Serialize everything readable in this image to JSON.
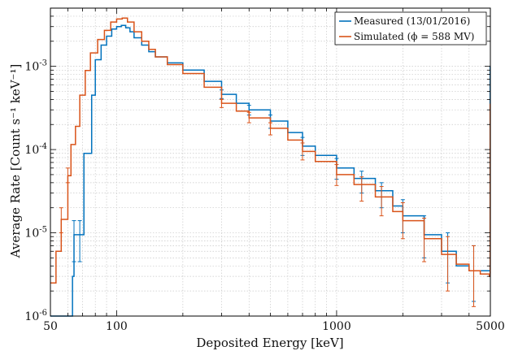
{
  "chart_data": {
    "type": "line",
    "step": true,
    "xscale": "log",
    "yscale": "log",
    "xlim": [
      50,
      5000
    ],
    "ylim": [
      1e-06,
      0.005
    ],
    "xlabel": "Deposited Energy [keV]",
    "ylabel": "Average Rate [Count s⁻¹ keV⁻¹]",
    "grid": true,
    "legend_position": "top-right",
    "x_ticks": [
      {
        "value": 50,
        "label": "50"
      },
      {
        "value": 100,
        "label": "100"
      },
      {
        "value": 1000,
        "label": "1000"
      },
      {
        "value": 5000,
        "label": "5000"
      }
    ],
    "y_ticks": [
      {
        "value": 1e-06,
        "base": "10",
        "exp": "-6"
      },
      {
        "value": 1e-05,
        "base": "10",
        "exp": "-5"
      },
      {
        "value": 0.0001,
        "base": "10",
        "exp": "-4"
      },
      {
        "value": 0.001,
        "base": "10",
        "exp": "-3"
      }
    ],
    "series": [
      {
        "name": "Measured (13/01/2016)",
        "color": "#0072BD",
        "points": [
          [
            50,
            1e-06
          ],
          [
            62,
            1e-06
          ],
          [
            63,
            3e-06
          ],
          [
            64,
            9.5e-06
          ],
          [
            70,
            9.5e-06
          ],
          [
            71,
            9e-05
          ],
          [
            77,
            0.00045
          ],
          [
            80,
            0.0012
          ],
          [
            85,
            0.0018
          ],
          [
            90,
            0.0023
          ],
          [
            95,
            0.0028
          ],
          [
            100,
            0.003
          ],
          [
            105,
            0.0031
          ],
          [
            110,
            0.0029
          ],
          [
            115,
            0.0026
          ],
          [
            120,
            0.0022
          ],
          [
            130,
            0.0018
          ],
          [
            140,
            0.0015
          ],
          [
            150,
            0.0013
          ],
          [
            170,
            0.0011
          ],
          [
            200,
            0.0009
          ],
          [
            250,
            0.00066
          ],
          [
            300,
            0.00046
          ],
          [
            350,
            0.00036
          ],
          [
            400,
            0.0003
          ],
          [
            500,
            0.00022
          ],
          [
            600,
            0.00016
          ],
          [
            700,
            0.00011
          ],
          [
            800,
            8.5e-05
          ],
          [
            1000,
            6e-05
          ],
          [
            1200,
            4.5e-05
          ],
          [
            1500,
            3.2e-05
          ],
          [
            1800,
            2.1e-05
          ],
          [
            2000,
            1.6e-05
          ],
          [
            2500,
            9.5e-06
          ],
          [
            3000,
            6e-06
          ],
          [
            3500,
            4e-06
          ],
          [
            4000,
            3.5e-06
          ],
          [
            4500,
            3.5e-06
          ],
          [
            4950,
            3.5e-06
          ],
          [
            4990,
            0.001
          ]
        ],
        "errorbars": [
          [
            64,
            9.5e-06,
            1.4e-05,
            4.5e-06
          ],
          [
            68,
            9.5e-06,
            1.4e-05,
            4.5e-06
          ],
          [
            300,
            0.00046,
            0.00052,
            0.00041
          ],
          [
            400,
            0.0003,
            0.00034,
            0.00026
          ],
          [
            500,
            0.00022,
            0.00026,
            0.00018
          ],
          [
            700,
            0.00011,
            0.00014,
            8.5e-05
          ],
          [
            1000,
            6e-05,
            7.8e-05,
            4.4e-05
          ],
          [
            1300,
            4e-05,
            5.5e-05,
            3e-05
          ],
          [
            1600,
            2.8e-05,
            4e-05,
            2e-05
          ],
          [
            2000,
            1.6e-05,
            2.5e-05,
            1e-05
          ],
          [
            2500,
            9.5e-06,
            1.6e-05,
            5e-06
          ],
          [
            3200,
            5.5e-06,
            1e-05,
            2.5e-06
          ],
          [
            4200,
            3.5e-06,
            7e-06,
            1.5e-06
          ]
        ]
      },
      {
        "name": "Simulated (ϕ = 588 MV)",
        "color": "#D95319",
        "points": [
          [
            50,
            2.5e-06
          ],
          [
            52,
            2.5e-06
          ],
          [
            53,
            6e-06
          ],
          [
            56,
            1.45e-05
          ],
          [
            60,
            4.85e-05
          ],
          [
            62,
            0.000115
          ],
          [
            65,
            0.00019
          ],
          [
            68,
            0.00045
          ],
          [
            72,
            0.00089
          ],
          [
            76,
            0.00145
          ],
          [
            82,
            0.0021
          ],
          [
            88,
            0.0027
          ],
          [
            94,
            0.0034
          ],
          [
            100,
            0.0037
          ],
          [
            106,
            0.0038
          ],
          [
            112,
            0.0034
          ],
          [
            120,
            0.0026
          ],
          [
            130,
            0.002
          ],
          [
            140,
            0.0016
          ],
          [
            150,
            0.0013
          ],
          [
            170,
            0.00105
          ],
          [
            200,
            0.00082
          ],
          [
            250,
            0.00056
          ],
          [
            300,
            0.00036
          ],
          [
            350,
            0.00029
          ],
          [
            400,
            0.00024
          ],
          [
            500,
            0.00018
          ],
          [
            600,
            0.00013
          ],
          [
            700,
            9.5e-05
          ],
          [
            800,
            7.2e-05
          ],
          [
            1000,
            5e-05
          ],
          [
            1200,
            3.8e-05
          ],
          [
            1500,
            2.7e-05
          ],
          [
            1800,
            1.8e-05
          ],
          [
            2000,
            1.4e-05
          ],
          [
            2500,
            8.5e-06
          ],
          [
            3000,
            5.5e-06
          ],
          [
            3500,
            4.2e-06
          ],
          [
            4000,
            3.5e-06
          ],
          [
            4500,
            3.2e-06
          ],
          [
            4950,
            3e-06
          ],
          [
            4990,
            0.00035
          ]
        ],
        "errorbars": [
          [
            56,
            1.45e-05,
            2e-05,
            1e-05
          ],
          [
            60,
            4.85e-05,
            6e-05,
            4e-05
          ],
          [
            300,
            0.00036,
            0.0004,
            0.00032
          ],
          [
            400,
            0.00024,
            0.00028,
            0.00021
          ],
          [
            500,
            0.00018,
            0.00021,
            0.00015
          ],
          [
            700,
            9.5e-05,
            0.00012,
            7.5e-05
          ],
          [
            1000,
            5e-05,
            6.6e-05,
            3.7e-05
          ],
          [
            1300,
            3.4e-05,
            4.7e-05,
            2.4e-05
          ],
          [
            1600,
            2.4e-05,
            3.6e-05,
            1.6e-05
          ],
          [
            2000,
            1.4e-05,
            2.3e-05,
            8.5e-06
          ],
          [
            2500,
            8.5e-06,
            1.5e-05,
            4.5e-06
          ],
          [
            3200,
            5e-06,
            9e-06,
            2e-06
          ],
          [
            4200,
            3.3e-06,
            7e-06,
            1.3e-06
          ]
        ]
      }
    ]
  }
}
